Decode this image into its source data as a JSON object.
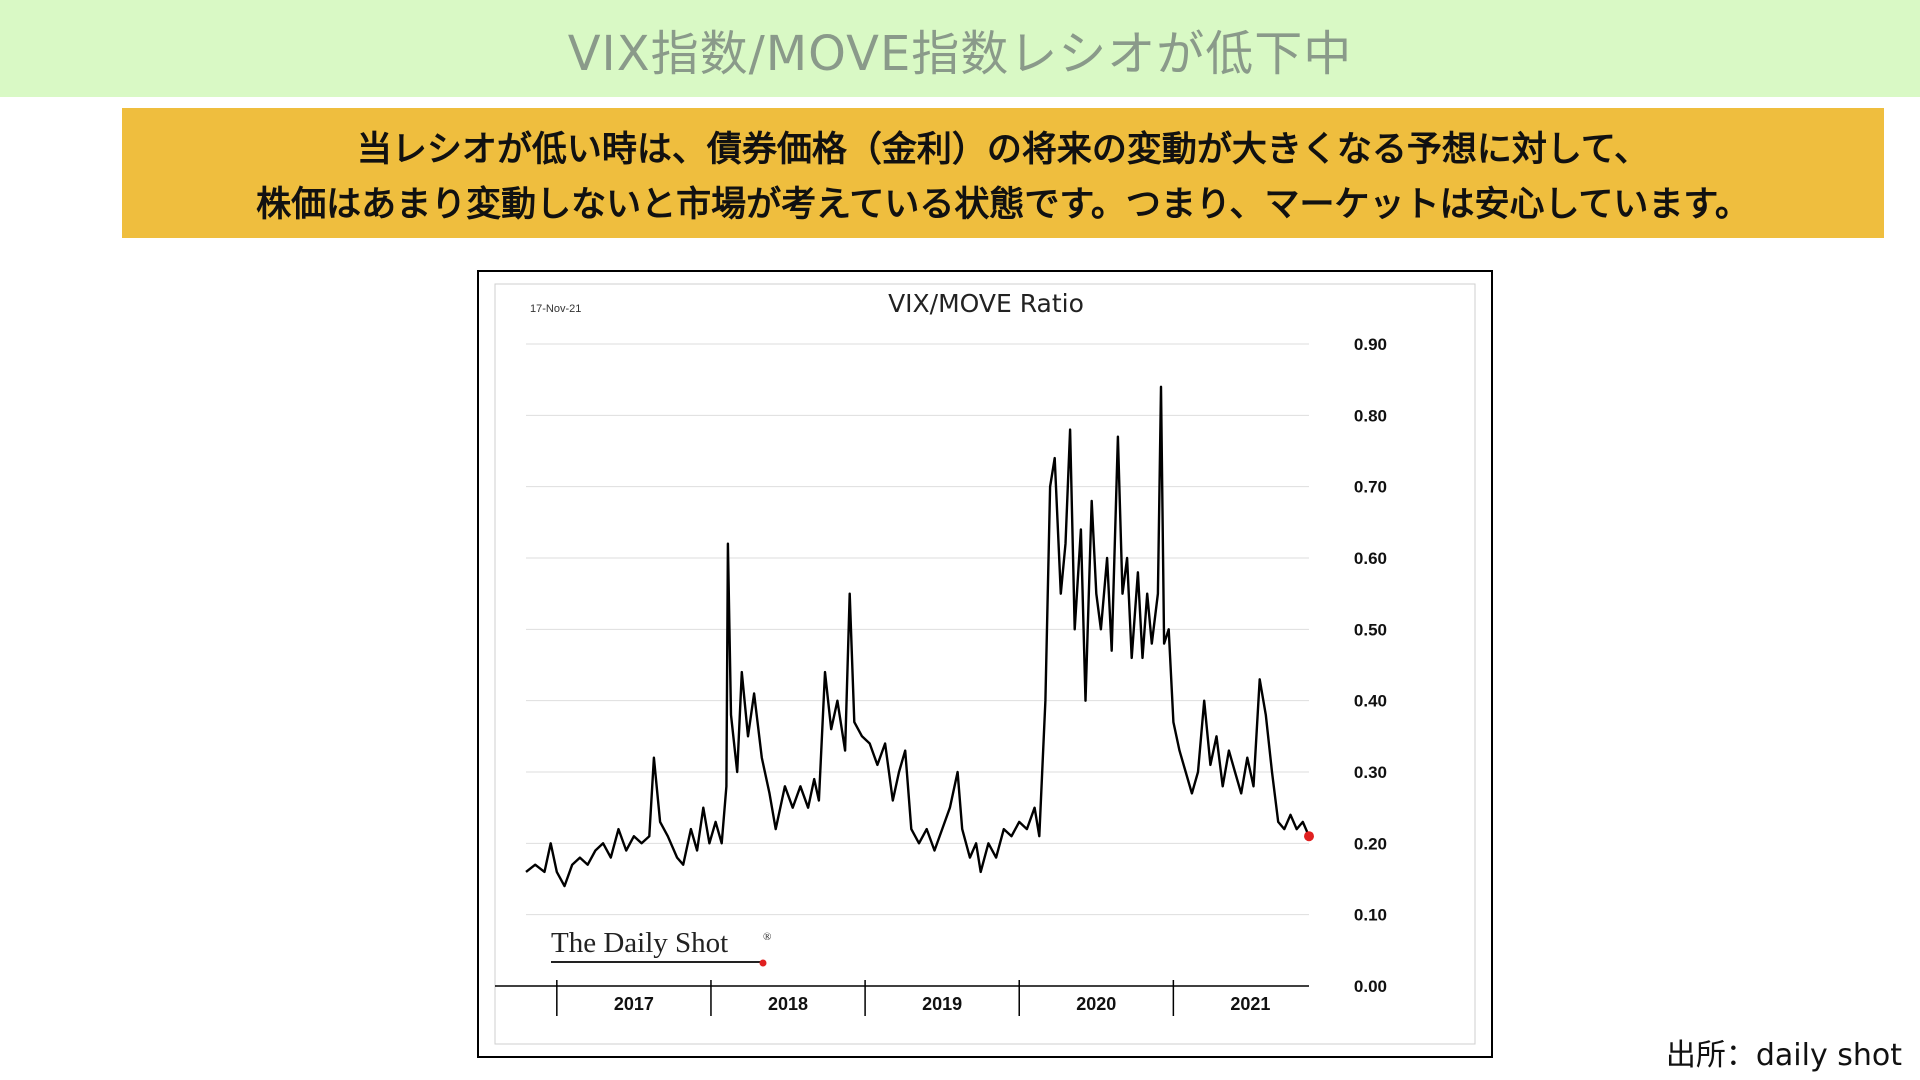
{
  "page": {
    "title": "VIX指数/MOVE指数レシオが低下中",
    "note_line1": "当レシオが低い時は、債券価格（金利）の将来の変動が大きくなる予想に対して、",
    "note_line2": "株価はあまり変動しないと市場が考えている状態です。つまり、マーケットは安心しています。",
    "source": "出所：daily shot"
  },
  "chart_data": {
    "type": "line",
    "title": "VIX/MOVE Ratio",
    "date_label": "17-Nov-21",
    "watermark": "The Daily Shot",
    "watermark_mark": "®",
    "xlabel": "",
    "ylabel": "",
    "x_start": 2016.8,
    "x_end": 2021.88,
    "x_ticks": [
      "2017",
      "2018",
      "2019",
      "2020",
      "2021"
    ],
    "ylim": [
      0,
      0.9
    ],
    "y_ticks": [
      "0.00",
      "0.10",
      "0.20",
      "0.30",
      "0.40",
      "0.50",
      "0.60",
      "0.70",
      "0.80",
      "0.90"
    ],
    "y_axis_position": "right",
    "grid": true,
    "series": [
      {
        "color": "#000000",
        "points": [
          [
            2016.8,
            0.16
          ],
          [
            2016.86,
            0.17
          ],
          [
            2016.92,
            0.16
          ],
          [
            2016.96,
            0.2
          ],
          [
            2017.0,
            0.16
          ],
          [
            2017.05,
            0.14
          ],
          [
            2017.1,
            0.17
          ],
          [
            2017.15,
            0.18
          ],
          [
            2017.2,
            0.17
          ],
          [
            2017.25,
            0.19
          ],
          [
            2017.3,
            0.2
          ],
          [
            2017.35,
            0.18
          ],
          [
            2017.4,
            0.22
          ],
          [
            2017.45,
            0.19
          ],
          [
            2017.5,
            0.21
          ],
          [
            2017.55,
            0.2
          ],
          [
            2017.6,
            0.21
          ],
          [
            2017.63,
            0.32
          ],
          [
            2017.67,
            0.23
          ],
          [
            2017.72,
            0.21
          ],
          [
            2017.78,
            0.18
          ],
          [
            2017.82,
            0.17
          ],
          [
            2017.87,
            0.22
          ],
          [
            2017.91,
            0.19
          ],
          [
            2017.95,
            0.25
          ],
          [
            2017.99,
            0.2
          ],
          [
            2018.03,
            0.23
          ],
          [
            2018.07,
            0.2
          ],
          [
            2018.1,
            0.28
          ],
          [
            2018.11,
            0.62
          ],
          [
            2018.13,
            0.38
          ],
          [
            2018.17,
            0.3
          ],
          [
            2018.2,
            0.44
          ],
          [
            2018.24,
            0.35
          ],
          [
            2018.28,
            0.41
          ],
          [
            2018.33,
            0.32
          ],
          [
            2018.38,
            0.27
          ],
          [
            2018.42,
            0.22
          ],
          [
            2018.48,
            0.28
          ],
          [
            2018.53,
            0.25
          ],
          [
            2018.58,
            0.28
          ],
          [
            2018.63,
            0.25
          ],
          [
            2018.67,
            0.29
          ],
          [
            2018.7,
            0.26
          ],
          [
            2018.74,
            0.44
          ],
          [
            2018.78,
            0.36
          ],
          [
            2018.82,
            0.4
          ],
          [
            2018.87,
            0.33
          ],
          [
            2018.9,
            0.55
          ],
          [
            2018.93,
            0.37
          ],
          [
            2018.98,
            0.35
          ],
          [
            2019.03,
            0.34
          ],
          [
            2019.08,
            0.31
          ],
          [
            2019.13,
            0.34
          ],
          [
            2019.18,
            0.26
          ],
          [
            2019.22,
            0.3
          ],
          [
            2019.26,
            0.33
          ],
          [
            2019.3,
            0.22
          ],
          [
            2019.35,
            0.2
          ],
          [
            2019.4,
            0.22
          ],
          [
            2019.45,
            0.19
          ],
          [
            2019.5,
            0.22
          ],
          [
            2019.55,
            0.25
          ],
          [
            2019.6,
            0.3
          ],
          [
            2019.63,
            0.22
          ],
          [
            2019.68,
            0.18
          ],
          [
            2019.72,
            0.2
          ],
          [
            2019.75,
            0.16
          ],
          [
            2019.8,
            0.2
          ],
          [
            2019.85,
            0.18
          ],
          [
            2019.9,
            0.22
          ],
          [
            2019.95,
            0.21
          ],
          [
            2020.0,
            0.23
          ],
          [
            2020.05,
            0.22
          ],
          [
            2020.1,
            0.25
          ],
          [
            2020.13,
            0.21
          ],
          [
            2020.17,
            0.4
          ],
          [
            2020.2,
            0.7
          ],
          [
            2020.23,
            0.74
          ],
          [
            2020.27,
            0.55
          ],
          [
            2020.3,
            0.62
          ],
          [
            2020.33,
            0.78
          ],
          [
            2020.36,
            0.5
          ],
          [
            2020.4,
            0.64
          ],
          [
            2020.43,
            0.4
          ],
          [
            2020.47,
            0.68
          ],
          [
            2020.5,
            0.55
          ],
          [
            2020.53,
            0.5
          ],
          [
            2020.57,
            0.6
          ],
          [
            2020.6,
            0.47
          ],
          [
            2020.64,
            0.77
          ],
          [
            2020.67,
            0.55
          ],
          [
            2020.7,
            0.6
          ],
          [
            2020.73,
            0.46
          ],
          [
            2020.77,
            0.58
          ],
          [
            2020.8,
            0.46
          ],
          [
            2020.83,
            0.55
          ],
          [
            2020.86,
            0.48
          ],
          [
            2020.9,
            0.55
          ],
          [
            2020.92,
            0.84
          ],
          [
            2020.94,
            0.48
          ],
          [
            2020.97,
            0.5
          ],
          [
            2021.0,
            0.37
          ],
          [
            2021.04,
            0.33
          ],
          [
            2021.08,
            0.3
          ],
          [
            2021.12,
            0.27
          ],
          [
            2021.16,
            0.3
          ],
          [
            2021.2,
            0.4
          ],
          [
            2021.24,
            0.31
          ],
          [
            2021.28,
            0.35
          ],
          [
            2021.32,
            0.28
          ],
          [
            2021.36,
            0.33
          ],
          [
            2021.4,
            0.3
          ],
          [
            2021.44,
            0.27
          ],
          [
            2021.48,
            0.32
          ],
          [
            2021.52,
            0.28
          ],
          [
            2021.56,
            0.43
          ],
          [
            2021.6,
            0.38
          ],
          [
            2021.64,
            0.3
          ],
          [
            2021.68,
            0.23
          ],
          [
            2021.72,
            0.22
          ],
          [
            2021.76,
            0.24
          ],
          [
            2021.8,
            0.22
          ],
          [
            2021.84,
            0.23
          ],
          [
            2021.88,
            0.21
          ]
        ]
      }
    ]
  }
}
